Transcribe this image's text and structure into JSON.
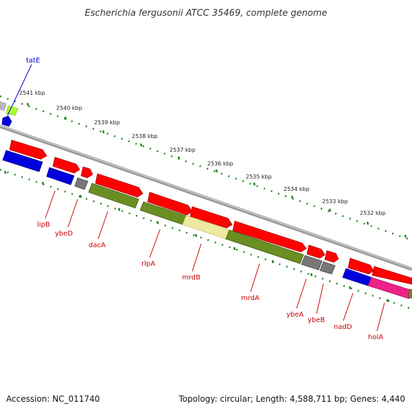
{
  "title": "Escherichia fergusonii ATCC 35469, complete genome",
  "footer": {
    "accession": "Accession: NC_011740",
    "stats": "Topology: circular; Length: 4,588,711 bp; Genes: 4,440"
  },
  "colors": {
    "forward_cds": "#ff0000",
    "reverse_cds": "#0000dd",
    "operon_green": "#6b8e23",
    "light_yellow": "#eee8a0",
    "gray": "#777777",
    "pink": "#ee2288",
    "lime": "#aaff33",
    "backbone": "#888888",
    "tick": "#228822",
    "label_forward": "#0000cc",
    "label_reverse": "#cc0000"
  },
  "kbp_ticks": [
    "2541 kbp",
    "2540 kbp",
    "2539 kbp",
    "2538 kbp",
    "2537 kbp",
    "2536 kbp",
    "2535 kbp",
    "2534 kbp",
    "2533 kbp",
    "2532 kbp"
  ],
  "gene_labels": {
    "tatE": "tatE",
    "lipB": "lipB",
    "ybeD": "ybeD",
    "dacA": "dacA",
    "rlpA": "rlpA",
    "mrdB": "mrdB",
    "mrdA": "mrdA",
    "ybeA": "ybeA",
    "ybeB": "ybeB",
    "nadD": "nadD",
    "holA": "holA"
  }
}
